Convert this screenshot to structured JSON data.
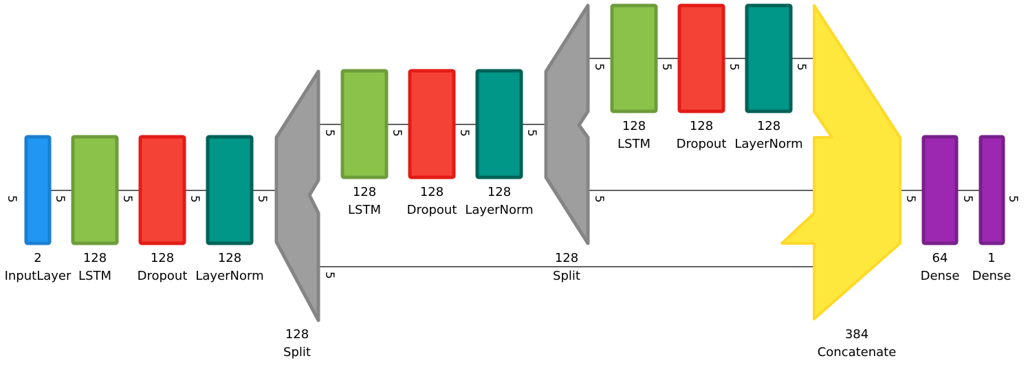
{
  "colors": {
    "input_fill": "#2196f3",
    "input_stroke": "#1a7fd1",
    "lstm_fill": "#8bc34a",
    "lstm_stroke": "#6e9c3b",
    "dropout_fill": "#f44336",
    "dropout_stroke": "#e31b17",
    "layernorm_fill": "#009688",
    "layernorm_stroke": "#006157",
    "split_fill": "#9e9e9e",
    "split_stroke": "#858585",
    "concat_fill": "#ffe83d",
    "concat_stroke": "#ffd92a",
    "dense_fill": "#9c27b0",
    "dense_stroke": "#78208b",
    "edge": "#000000"
  },
  "icons": {
    "split": "split-trapezoid-icon",
    "concatenate": "concatenate-arrow-icon"
  },
  "nodes": {
    "input": {
      "units": "2",
      "name": "InputLayer"
    },
    "lstm1": {
      "units": "128",
      "name": "LSTM"
    },
    "dropout1": {
      "units": "128",
      "name": "Dropout"
    },
    "layernorm1": {
      "units": "128",
      "name": "LayerNorm"
    },
    "split1": {
      "units": "128",
      "name": "Split"
    },
    "lstm2": {
      "units": "128",
      "name": "LSTM"
    },
    "dropout2": {
      "units": "128",
      "name": "Dropout"
    },
    "layernorm2": {
      "units": "128",
      "name": "LayerNorm"
    },
    "split2": {
      "units": "128",
      "name": "Split"
    },
    "lstm3": {
      "units": "128",
      "name": "LSTM"
    },
    "dropout3": {
      "units": "128",
      "name": "Dropout"
    },
    "layernorm3": {
      "units": "128",
      "name": "LayerNorm"
    },
    "concat": {
      "units": "384",
      "name": "Concatenate"
    },
    "dense1": {
      "units": "64",
      "name": "Dense"
    },
    "dense2": {
      "units": "1",
      "name": "Dense"
    }
  },
  "edge_labels": {
    "in_left": "5",
    "input_lstm1": "5",
    "lstm1_dropout1": "5",
    "dropout1_layernorm1": "5",
    "layernorm1_split1": "5",
    "split1_lstm2": "5",
    "lstm2_dropout2": "5",
    "dropout2_layernorm2": "5",
    "layernorm2_split2": "5",
    "split2_lstm3": "5",
    "lstm3_dropout3": "5",
    "dropout3_layernorm3": "5",
    "layernorm3_concat": "5",
    "split2_concat": "5",
    "split1_concat": "5",
    "concat_dense1": "5",
    "dense1_dense2": "5",
    "out_right": "5"
  }
}
